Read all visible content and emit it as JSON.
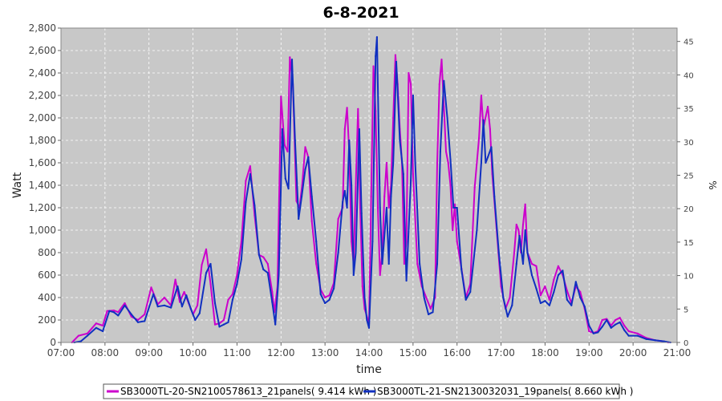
{
  "chart_data": {
    "type": "line",
    "title": "6-8-2021",
    "xlabel": "time",
    "ylabel": "Watt",
    "ylabel_right": "%",
    "xlim": [
      7.0,
      21.0
    ],
    "ylim": [
      0,
      2800
    ],
    "ylim_right": [
      0,
      47
    ],
    "x_ticks": [
      "07:00",
      "08:00",
      "09:00",
      "10:00",
      "11:00",
      "12:00",
      "13:00",
      "14:00",
      "15:00",
      "16:00",
      "17:00",
      "18:00",
      "19:00",
      "20:00",
      "21:00"
    ],
    "y_ticks": [
      "0",
      "200",
      "400",
      "600",
      "800",
      "1,000",
      "1,200",
      "1,400",
      "1,600",
      "1,800",
      "2,000",
      "2,200",
      "2,400",
      "2,600",
      "2,800"
    ],
    "y_ticks_right": [
      "0",
      "5",
      "10",
      "15",
      "20",
      "25",
      "30",
      "35",
      "40",
      "45"
    ],
    "grid": true,
    "legend_position": "bottom",
    "colors": {
      "plot_bg": "#c8c8c8",
      "grid": "#ffffff",
      "series1": "#cc00cc",
      "series2": "#1030c0"
    },
    "series": [
      {
        "name": "SB3000TL-20-SN2100578613_21panels( 9.414 kWh )",
        "color": "#cc00cc",
        "points": [
          [
            7.25,
            0
          ],
          [
            7.4,
            60
          ],
          [
            7.6,
            80
          ],
          [
            7.8,
            170
          ],
          [
            7.95,
            150
          ],
          [
            8.05,
            280
          ],
          [
            8.2,
            285
          ],
          [
            8.3,
            270
          ],
          [
            8.45,
            350
          ],
          [
            8.6,
            230
          ],
          [
            8.75,
            200
          ],
          [
            8.9,
            250
          ],
          [
            9.05,
            490
          ],
          [
            9.2,
            340
          ],
          [
            9.35,
            400
          ],
          [
            9.5,
            330
          ],
          [
            9.6,
            560
          ],
          [
            9.7,
            360
          ],
          [
            9.8,
            450
          ],
          [
            9.9,
            350
          ],
          [
            10.0,
            250
          ],
          [
            10.1,
            330
          ],
          [
            10.2,
            690
          ],
          [
            10.3,
            830
          ],
          [
            10.4,
            520
          ],
          [
            10.5,
            160
          ],
          [
            10.6,
            170
          ],
          [
            10.7,
            200
          ],
          [
            10.8,
            380
          ],
          [
            10.9,
            430
          ],
          [
            11.0,
            600
          ],
          [
            11.1,
            900
          ],
          [
            11.2,
            1440
          ],
          [
            11.3,
            1570
          ],
          [
            11.4,
            1130
          ],
          [
            11.5,
            780
          ],
          [
            11.6,
            760
          ],
          [
            11.7,
            700
          ],
          [
            11.8,
            450
          ],
          [
            11.85,
            270
          ],
          [
            11.92,
            500
          ],
          [
            12.0,
            2190
          ],
          [
            12.08,
            1760
          ],
          [
            12.15,
            1700
          ],
          [
            12.2,
            2540
          ],
          [
            12.27,
            2300
          ],
          [
            12.35,
            1260
          ],
          [
            12.42,
            1200
          ],
          [
            12.48,
            1400
          ],
          [
            12.55,
            1740
          ],
          [
            12.62,
            1650
          ],
          [
            12.7,
            1080
          ],
          [
            12.8,
            700
          ],
          [
            12.9,
            470
          ],
          [
            13.0,
            400
          ],
          [
            13.1,
            420
          ],
          [
            13.2,
            530
          ],
          [
            13.3,
            1100
          ],
          [
            13.4,
            1200
          ],
          [
            13.45,
            1900
          ],
          [
            13.5,
            2090
          ],
          [
            13.55,
            1700
          ],
          [
            13.6,
            900
          ],
          [
            13.65,
            700
          ],
          [
            13.7,
            1400
          ],
          [
            13.75,
            2080
          ],
          [
            13.8,
            1200
          ],
          [
            13.85,
            500
          ],
          [
            13.9,
            300
          ],
          [
            14.0,
            170
          ],
          [
            14.05,
            1300
          ],
          [
            14.1,
            2460
          ],
          [
            14.15,
            2060
          ],
          [
            14.2,
            1200
          ],
          [
            14.25,
            600
          ],
          [
            14.3,
            800
          ],
          [
            14.35,
            1300
          ],
          [
            14.4,
            1600
          ],
          [
            14.45,
            1200
          ],
          [
            14.5,
            1400
          ],
          [
            14.55,
            2000
          ],
          [
            14.6,
            2560
          ],
          [
            14.65,
            2300
          ],
          [
            14.7,
            1900
          ],
          [
            14.75,
            1600
          ],
          [
            14.8,
            700
          ],
          [
            14.85,
            900
          ],
          [
            14.9,
            2400
          ],
          [
            14.95,
            2300
          ],
          [
            15.0,
            1500
          ],
          [
            15.1,
            700
          ],
          [
            15.2,
            500
          ],
          [
            15.3,
            400
          ],
          [
            15.4,
            300
          ],
          [
            15.5,
            400
          ],
          [
            15.55,
            1600
          ],
          [
            15.6,
            2300
          ],
          [
            15.65,
            2520
          ],
          [
            15.7,
            2100
          ],
          [
            15.75,
            1700
          ],
          [
            15.8,
            1600
          ],
          [
            15.85,
            1400
          ],
          [
            15.9,
            1000
          ],
          [
            15.95,
            1230
          ],
          [
            16.0,
            900
          ],
          [
            16.1,
            660
          ],
          [
            16.2,
            400
          ],
          [
            16.3,
            520
          ],
          [
            16.4,
            1380
          ],
          [
            16.5,
            1820
          ],
          [
            16.55,
            2200
          ],
          [
            16.6,
            1910
          ],
          [
            16.7,
            2100
          ],
          [
            16.75,
            1900
          ],
          [
            16.8,
            1500
          ],
          [
            16.9,
            1000
          ],
          [
            17.0,
            500
          ],
          [
            17.1,
            300
          ],
          [
            17.2,
            400
          ],
          [
            17.3,
            800
          ],
          [
            17.35,
            1050
          ],
          [
            17.4,
            1000
          ],
          [
            17.45,
            800
          ],
          [
            17.5,
            1050
          ],
          [
            17.55,
            1230
          ],
          [
            17.6,
            800
          ],
          [
            17.7,
            700
          ],
          [
            17.8,
            680
          ],
          [
            17.9,
            420
          ],
          [
            18.0,
            500
          ],
          [
            18.1,
            380
          ],
          [
            18.2,
            560
          ],
          [
            18.3,
            680
          ],
          [
            18.4,
            600
          ],
          [
            18.5,
            460
          ],
          [
            18.6,
            350
          ],
          [
            18.7,
            500
          ],
          [
            18.8,
            450
          ],
          [
            18.9,
            300
          ],
          [
            19.0,
            100
          ],
          [
            19.1,
            85
          ],
          [
            19.2,
            100
          ],
          [
            19.3,
            200
          ],
          [
            19.4,
            210
          ],
          [
            19.5,
            150
          ],
          [
            19.6,
            200
          ],
          [
            19.7,
            220
          ],
          [
            19.8,
            150
          ],
          [
            19.9,
            100
          ],
          [
            20.1,
            80
          ],
          [
            20.3,
            40
          ],
          [
            20.5,
            20
          ],
          [
            20.7,
            10
          ],
          [
            20.8,
            0
          ]
        ]
      },
      {
        "name": "SB3000TL-21-SN2130032031_19panels( 8.660 kWh )",
        "color": "#1030c0",
        "points": [
          [
            7.3,
            0
          ],
          [
            7.45,
            10
          ],
          [
            7.6,
            60
          ],
          [
            7.8,
            130
          ],
          [
            7.95,
            100
          ],
          [
            8.1,
            280
          ],
          [
            8.2,
            270
          ],
          [
            8.3,
            240
          ],
          [
            8.45,
            330
          ],
          [
            8.6,
            250
          ],
          [
            8.75,
            180
          ],
          [
            8.9,
            190
          ],
          [
            9.1,
            430
          ],
          [
            9.2,
            320
          ],
          [
            9.35,
            330
          ],
          [
            9.5,
            310
          ],
          [
            9.65,
            500
          ],
          [
            9.75,
            320
          ],
          [
            9.85,
            420
          ],
          [
            9.95,
            300
          ],
          [
            10.05,
            200
          ],
          [
            10.15,
            260
          ],
          [
            10.3,
            620
          ],
          [
            10.4,
            700
          ],
          [
            10.5,
            350
          ],
          [
            10.6,
            140
          ],
          [
            10.7,
            160
          ],
          [
            10.8,
            180
          ],
          [
            10.9,
            380
          ],
          [
            11.0,
            520
          ],
          [
            11.1,
            740
          ],
          [
            11.2,
            1250
          ],
          [
            11.3,
            1500
          ],
          [
            11.4,
            1220
          ],
          [
            11.5,
            780
          ],
          [
            11.6,
            650
          ],
          [
            11.7,
            620
          ],
          [
            11.8,
            360
          ],
          [
            11.87,
            160
          ],
          [
            11.95,
            600
          ],
          [
            12.03,
            1900
          ],
          [
            12.1,
            1460
          ],
          [
            12.17,
            1370
          ],
          [
            12.25,
            2520
          ],
          [
            12.32,
            1800
          ],
          [
            12.4,
            1100
          ],
          [
            12.47,
            1300
          ],
          [
            12.55,
            1540
          ],
          [
            12.62,
            1650
          ],
          [
            12.7,
            1300
          ],
          [
            12.8,
            900
          ],
          [
            12.9,
            430
          ],
          [
            13.0,
            350
          ],
          [
            13.1,
            380
          ],
          [
            13.2,
            480
          ],
          [
            13.3,
            800
          ],
          [
            13.4,
            1250
          ],
          [
            13.45,
            1350
          ],
          [
            13.5,
            1200
          ],
          [
            13.55,
            1800
          ],
          [
            13.6,
            1400
          ],
          [
            13.65,
            600
          ],
          [
            13.7,
            800
          ],
          [
            13.78,
            1900
          ],
          [
            13.83,
            1150
          ],
          [
            13.9,
            400
          ],
          [
            13.95,
            200
          ],
          [
            14.0,
            130
          ],
          [
            14.08,
            900
          ],
          [
            14.15,
            2550
          ],
          [
            14.18,
            2720
          ],
          [
            14.25,
            1200
          ],
          [
            14.3,
            700
          ],
          [
            14.4,
            1200
          ],
          [
            14.45,
            700
          ],
          [
            14.5,
            1300
          ],
          [
            14.55,
            1600
          ],
          [
            14.62,
            2500
          ],
          [
            14.7,
            1800
          ],
          [
            14.78,
            1500
          ],
          [
            14.85,
            550
          ],
          [
            14.95,
            1440
          ],
          [
            15.0,
            2200
          ],
          [
            15.05,
            1600
          ],
          [
            15.15,
            700
          ],
          [
            15.25,
            400
          ],
          [
            15.35,
            250
          ],
          [
            15.45,
            270
          ],
          [
            15.55,
            700
          ],
          [
            15.62,
            1700
          ],
          [
            15.7,
            2330
          ],
          [
            15.78,
            2000
          ],
          [
            15.85,
            1630
          ],
          [
            15.92,
            1200
          ],
          [
            16.0,
            1200
          ],
          [
            16.1,
            650
          ],
          [
            16.2,
            380
          ],
          [
            16.3,
            450
          ],
          [
            16.45,
            1000
          ],
          [
            16.55,
            1600
          ],
          [
            16.6,
            1980
          ],
          [
            16.65,
            1600
          ],
          [
            16.7,
            1650
          ],
          [
            16.78,
            1740
          ],
          [
            16.85,
            1300
          ],
          [
            16.95,
            800
          ],
          [
            17.05,
            400
          ],
          [
            17.15,
            230
          ],
          [
            17.25,
            330
          ],
          [
            17.35,
            700
          ],
          [
            17.42,
            950
          ],
          [
            17.5,
            700
          ],
          [
            17.55,
            1000
          ],
          [
            17.6,
            800
          ],
          [
            17.7,
            600
          ],
          [
            17.8,
            480
          ],
          [
            17.9,
            350
          ],
          [
            18.0,
            370
          ],
          [
            18.1,
            330
          ],
          [
            18.2,
            450
          ],
          [
            18.3,
            600
          ],
          [
            18.4,
            640
          ],
          [
            18.5,
            380
          ],
          [
            18.6,
            330
          ],
          [
            18.7,
            540
          ],
          [
            18.8,
            400
          ],
          [
            18.9,
            320
          ],
          [
            19.0,
            150
          ],
          [
            19.1,
            80
          ],
          [
            19.2,
            90
          ],
          [
            19.3,
            140
          ],
          [
            19.4,
            200
          ],
          [
            19.5,
            130
          ],
          [
            19.6,
            160
          ],
          [
            19.7,
            180
          ],
          [
            19.8,
            110
          ],
          [
            19.9,
            60
          ],
          [
            20.1,
            60
          ],
          [
            20.3,
            30
          ],
          [
            20.5,
            20
          ],
          [
            20.7,
            10
          ],
          [
            20.85,
            0
          ]
        ]
      }
    ]
  }
}
